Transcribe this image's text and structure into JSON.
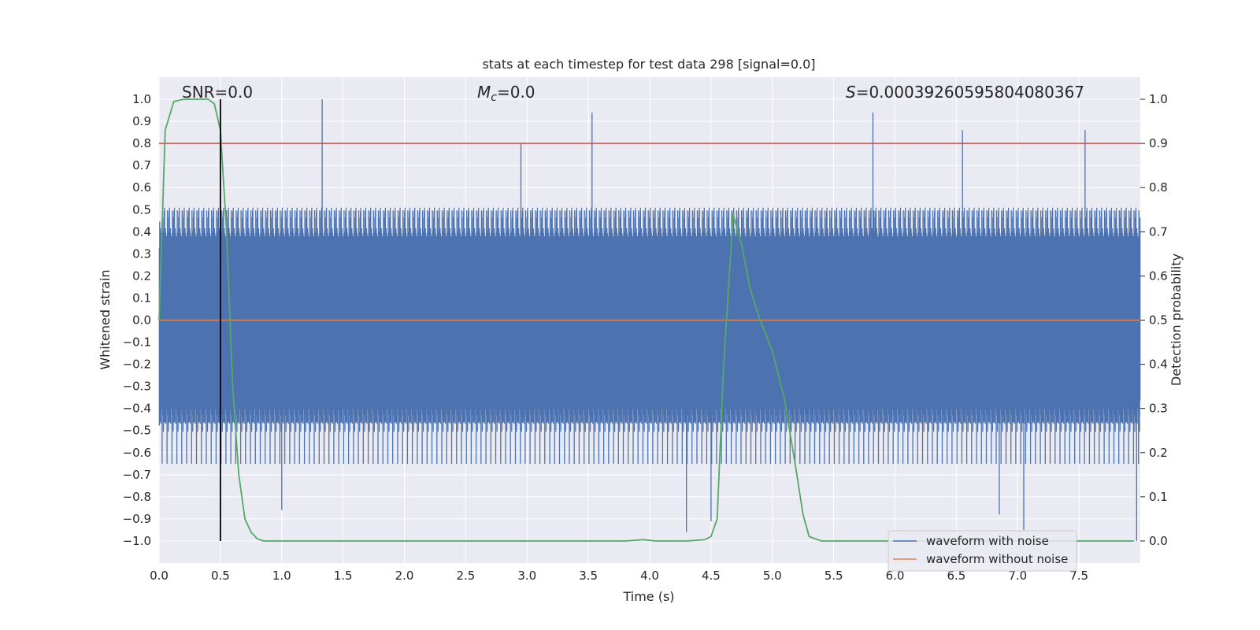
{
  "chart_data": {
    "type": "line",
    "title": "stats at each timestep for test data 298 [signal=0.0]",
    "xlabel": "Time (s)",
    "ylabel_left": "Whitened strain",
    "ylabel_right": "Detection probability",
    "xlim": [
      0.0,
      8.0
    ],
    "ylim_left": [
      -1.1,
      1.1
    ],
    "ylim_right": [
      -0.05,
      1.05
    ],
    "x_ticks": [
      "0.0",
      "0.5",
      "1.0",
      "1.5",
      "2.0",
      "2.5",
      "3.0",
      "3.5",
      "4.0",
      "4.5",
      "5.0",
      "5.5",
      "6.0",
      "6.5",
      "7.0",
      "7.5"
    ],
    "y_left_ticks": [
      "1.0",
      "0.9",
      "0.8",
      "0.7",
      "0.6",
      "0.5",
      "0.4",
      "0.3",
      "0.2",
      "0.1",
      "0.0",
      "−0.1",
      "−0.2",
      "−0.3",
      "−0.4",
      "−0.5",
      "−0.6",
      "−0.7",
      "−0.8",
      "−0.9",
      "−1.0"
    ],
    "y_right_ticks": [
      "1.0",
      "0.9",
      "0.8",
      "0.7",
      "0.6",
      "0.5",
      "0.4",
      "0.3",
      "0.2",
      "0.1",
      "0.0"
    ],
    "annotations": {
      "snr": "SNR=0.0",
      "mc_symbol": "M",
      "mc_sub": "c",
      "mc_value": "=0.0",
      "s_symbol": "S",
      "s_value": "=0.00039260595804080367"
    },
    "threshold_line": {
      "axis": "right",
      "value": 0.9,
      "color": "#c44e52"
    },
    "marker_line": {
      "x": 0.5,
      "y_from": -1.0,
      "y_to": 1.0,
      "color": "#000000"
    },
    "noise_band": {
      "core_amplitude": 0.3,
      "typical_peak": 0.45,
      "max_peak": 1.0,
      "min_trough": -1.0
    },
    "series": [
      {
        "name": "waveform with noise",
        "color": "#4c72b0",
        "axis": "left",
        "description": "dense noise, peaks up to ~1.0 and troughs to ~-1.0"
      },
      {
        "name": "waveform without noise",
        "color": "#dd8452",
        "axis": "left",
        "x": [
          0.0,
          8.0
        ],
        "values": [
          0.0,
          0.0
        ]
      },
      {
        "name": "detection probability",
        "color": "#55a868",
        "axis": "right",
        "x": [
          0.0,
          0.05,
          0.12,
          0.2,
          0.3,
          0.4,
          0.45,
          0.5,
          0.55,
          0.6,
          0.65,
          0.7,
          0.75,
          0.8,
          0.85,
          0.9,
          1.0,
          2.0,
          3.0,
          3.8,
          3.95,
          4.05,
          4.3,
          4.45,
          4.5,
          4.55,
          4.6,
          4.68,
          4.75,
          4.82,
          4.9,
          5.0,
          5.1,
          5.2,
          5.25,
          5.3,
          5.4,
          6.0,
          7.0,
          7.95
        ],
        "values": [
          0.5,
          0.93,
          0.995,
          1.0,
          1.0,
          1.0,
          0.99,
          0.93,
          0.7,
          0.35,
          0.15,
          0.05,
          0.02,
          0.005,
          0.0,
          0.0,
          0.0,
          0.0,
          0.0,
          0.0,
          0.003,
          0.0,
          0.0,
          0.003,
          0.01,
          0.05,
          0.38,
          0.74,
          0.67,
          0.57,
          0.5,
          0.43,
          0.32,
          0.15,
          0.06,
          0.01,
          0.0,
          0.0,
          0.0,
          0.0
        ]
      }
    ],
    "legend": {
      "position": "bottom-right",
      "entries": [
        {
          "label": "waveform with noise",
          "color": "#4c72b0"
        },
        {
          "label": "waveform without noise",
          "color": "#dd8452"
        }
      ]
    },
    "grid": true,
    "style": {
      "plot_bg": "#eaeaf2",
      "grid_color": "#ffffff"
    }
  }
}
